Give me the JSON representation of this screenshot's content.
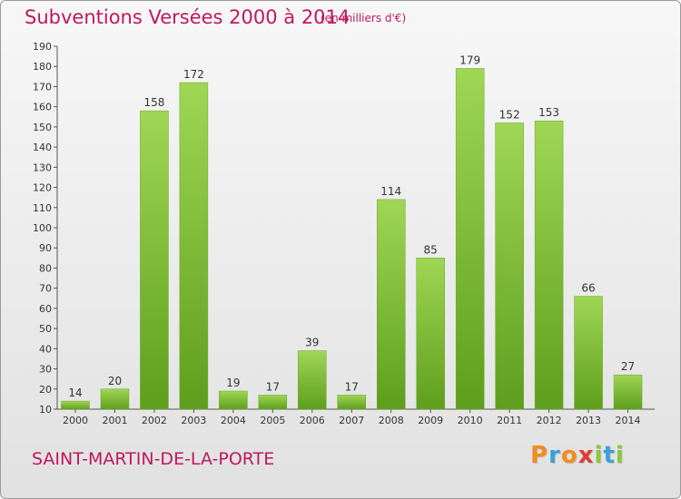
{
  "header": {
    "title": "Subventions Versées 2000 à 2014",
    "unit_note": "(en milliers d'€)"
  },
  "footer": {
    "commune": "SAINT-MARTIN-DE-LA-PORTE",
    "logo_letters": [
      "P",
      "r",
      "o",
      "x",
      "i",
      "t",
      "i"
    ],
    "logo_colors": [
      "#f28c1e",
      "#3aa0d8",
      "#f28c1e",
      "#e23b2e",
      "#8cc63f",
      "#3aa0d8",
      "#8cc63f"
    ]
  },
  "colors": {
    "bar_light": "#9fd655",
    "bar_dark": "#5e9e1c",
    "text_accent": "#c0185f"
  },
  "chart_data": {
    "type": "bar",
    "title": "Subventions Versées 2000 à 2014",
    "subtitle": "(en milliers d'€)",
    "xlabel": "",
    "ylabel": "",
    "categories": [
      "2000",
      "2001",
      "2002",
      "2003",
      "2004",
      "2005",
      "2006",
      "2007",
      "2008",
      "2009",
      "2010",
      "2011",
      "2012",
      "2013",
      "2014"
    ],
    "values": [
      14,
      20,
      158,
      172,
      19,
      17,
      39,
      17,
      114,
      85,
      179,
      152,
      153,
      66,
      27
    ],
    "ylim": [
      10,
      190
    ],
    "ytick_step": 10,
    "grid": false,
    "legend": "none"
  }
}
